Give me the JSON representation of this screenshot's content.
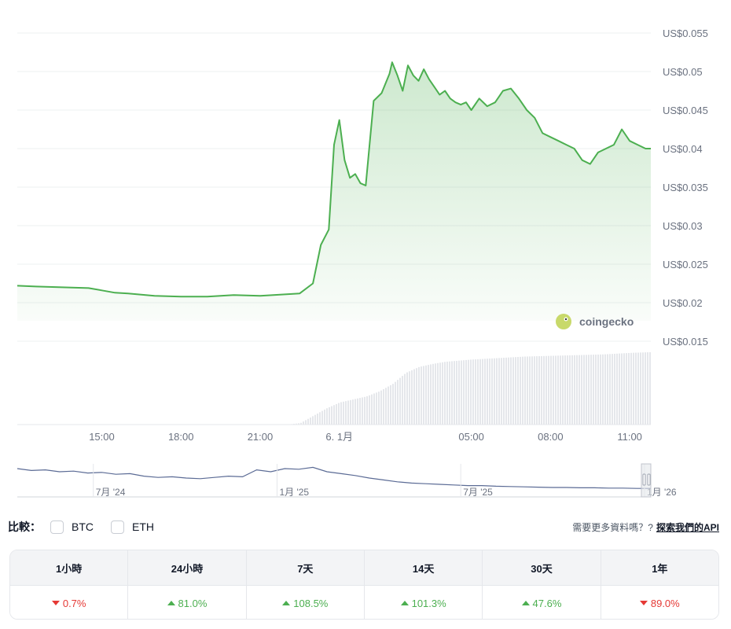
{
  "chart_data": {
    "type": "area",
    "y_ticks": [
      "US$0.055",
      "US$0.05",
      "US$0.045",
      "US$0.04",
      "US$0.035",
      "US$0.03",
      "US$0.025",
      "US$0.02",
      "US$0.015"
    ],
    "ylim": [
      0.015,
      0.055
    ],
    "x_ticks": [
      "15:00",
      "18:00",
      "21:00",
      "6. 1月",
      "05:00",
      "08:00",
      "11:00"
    ],
    "x_tick_hours": [
      15,
      18,
      21,
      24,
      29,
      32,
      35
    ],
    "xlim_hours": [
      11.8,
      35.8
    ],
    "grid": true,
    "line_color": "#4caf50",
    "watermark": "coingecko",
    "price": {
      "x_hours": [
        11.8,
        12.5,
        13.5,
        14.5,
        15.0,
        15.5,
        16.0,
        17.0,
        18.0,
        19.0,
        20.0,
        21.0,
        21.5,
        22.5,
        23.0,
        23.3,
        23.6,
        23.8,
        24.0,
        24.2,
        24.4,
        24.6,
        24.8,
        25.0,
        25.3,
        25.6,
        25.9,
        26.0,
        26.2,
        26.4,
        26.6,
        26.8,
        27.0,
        27.2,
        27.4,
        27.6,
        27.8,
        28.0,
        28.2,
        28.4,
        28.6,
        28.8,
        29.0,
        29.3,
        29.6,
        29.9,
        30.2,
        30.5,
        30.8,
        31.1,
        31.4,
        31.7,
        32.0,
        32.3,
        32.6,
        32.9,
        33.2,
        33.5,
        33.8,
        34.1,
        34.4,
        34.7,
        35.0,
        35.3,
        35.6,
        35.8
      ],
      "values": [
        0.0222,
        0.0221,
        0.022,
        0.0219,
        0.0216,
        0.0213,
        0.0212,
        0.0209,
        0.0208,
        0.0208,
        0.021,
        0.0209,
        0.021,
        0.0212,
        0.0225,
        0.0275,
        0.0295,
        0.0405,
        0.0437,
        0.0385,
        0.0362,
        0.0367,
        0.0355,
        0.0352,
        0.0462,
        0.0472,
        0.0497,
        0.0512,
        0.0495,
        0.0475,
        0.0508,
        0.0495,
        0.0488,
        0.0503,
        0.049,
        0.048,
        0.047,
        0.0475,
        0.0465,
        0.046,
        0.0457,
        0.046,
        0.045,
        0.0465,
        0.0455,
        0.046,
        0.0475,
        0.0478,
        0.0465,
        0.045,
        0.044,
        0.042,
        0.0415,
        0.041,
        0.0405,
        0.04,
        0.0385,
        0.038,
        0.0395,
        0.04,
        0.0405,
        0.0425,
        0.041,
        0.0405,
        0.04,
        0.04
      ]
    },
    "volume": {
      "x_hours": [
        11.8,
        22.0,
        22.5,
        23.0,
        23.5,
        24.0,
        24.5,
        25.0,
        25.5,
        26.0,
        26.5,
        27.0,
        27.5,
        28.0,
        29.0,
        30.0,
        31.0,
        32.0,
        33.0,
        34.0,
        35.0,
        35.8
      ],
      "relative": [
        0.0,
        0.0,
        0.02,
        0.12,
        0.22,
        0.3,
        0.34,
        0.38,
        0.45,
        0.55,
        0.7,
        0.78,
        0.82,
        0.85,
        0.88,
        0.9,
        0.92,
        0.93,
        0.94,
        0.95,
        0.97,
        0.98
      ]
    },
    "overview": {
      "x_ticks": [
        "7月 '24",
        "1月 '25",
        "7月 '25",
        "1月 '26"
      ],
      "values": [
        0.9,
        0.84,
        0.86,
        0.8,
        0.82,
        0.76,
        0.78,
        0.72,
        0.74,
        0.66,
        0.62,
        0.64,
        0.6,
        0.58,
        0.62,
        0.66,
        0.64,
        0.86,
        0.8,
        0.9,
        0.88,
        0.94,
        0.8,
        0.74,
        0.68,
        0.6,
        0.54,
        0.48,
        0.44,
        0.42,
        0.4,
        0.38,
        0.36,
        0.36,
        0.34,
        0.33,
        0.32,
        0.31,
        0.3,
        0.3,
        0.29,
        0.29,
        0.28,
        0.28,
        0.27,
        0.27
      ]
    }
  },
  "compare": {
    "label": "比較：",
    "options": [
      "BTC",
      "ETH"
    ],
    "question": "需要更多資料嗎？?",
    "api_link": "探索我們的API"
  },
  "performance": {
    "headers": [
      "1小時",
      "24小時",
      "7天",
      "14天",
      "30天",
      "1年"
    ],
    "values": [
      "0.7%",
      "81.0%",
      "108.5%",
      "101.3%",
      "47.6%",
      "89.0%"
    ],
    "directions": [
      "down",
      "up",
      "up",
      "up",
      "up",
      "down"
    ]
  }
}
